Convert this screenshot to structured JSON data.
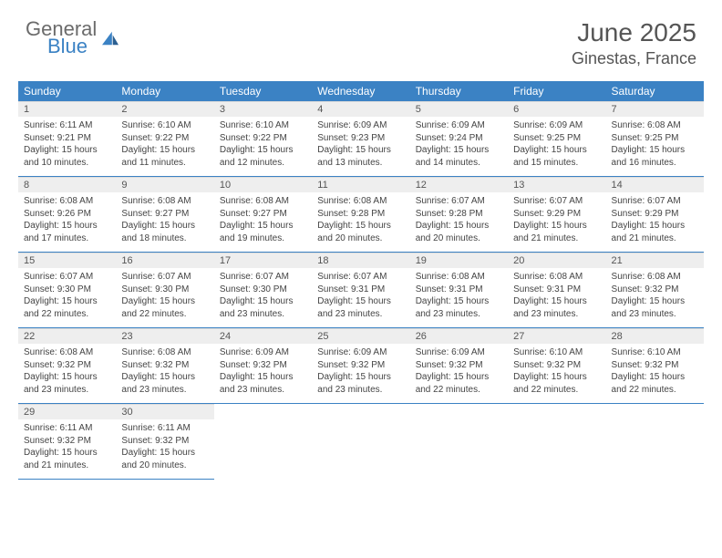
{
  "logo": {
    "text_top": "General",
    "text_bottom": "Blue"
  },
  "title": "June 2025",
  "location": "Ginestas, France",
  "colors": {
    "header_bg": "#3b82c4",
    "header_text": "#ffffff",
    "daynum_bg": "#eeeeee",
    "body_text": "#444444",
    "logo_gray": "#6b6b6b",
    "logo_blue": "#3b82c4"
  },
  "weekdays": [
    "Sunday",
    "Monday",
    "Tuesday",
    "Wednesday",
    "Thursday",
    "Friday",
    "Saturday"
  ],
  "weeks": [
    [
      {
        "n": "1",
        "sr": "Sunrise: 6:11 AM",
        "ss": "Sunset: 9:21 PM",
        "d1": "Daylight: 15 hours",
        "d2": "and 10 minutes."
      },
      {
        "n": "2",
        "sr": "Sunrise: 6:10 AM",
        "ss": "Sunset: 9:22 PM",
        "d1": "Daylight: 15 hours",
        "d2": "and 11 minutes."
      },
      {
        "n": "3",
        "sr": "Sunrise: 6:10 AM",
        "ss": "Sunset: 9:22 PM",
        "d1": "Daylight: 15 hours",
        "d2": "and 12 minutes."
      },
      {
        "n": "4",
        "sr": "Sunrise: 6:09 AM",
        "ss": "Sunset: 9:23 PM",
        "d1": "Daylight: 15 hours",
        "d2": "and 13 minutes."
      },
      {
        "n": "5",
        "sr": "Sunrise: 6:09 AM",
        "ss": "Sunset: 9:24 PM",
        "d1": "Daylight: 15 hours",
        "d2": "and 14 minutes."
      },
      {
        "n": "6",
        "sr": "Sunrise: 6:09 AM",
        "ss": "Sunset: 9:25 PM",
        "d1": "Daylight: 15 hours",
        "d2": "and 15 minutes."
      },
      {
        "n": "7",
        "sr": "Sunrise: 6:08 AM",
        "ss": "Sunset: 9:25 PM",
        "d1": "Daylight: 15 hours",
        "d2": "and 16 minutes."
      }
    ],
    [
      {
        "n": "8",
        "sr": "Sunrise: 6:08 AM",
        "ss": "Sunset: 9:26 PM",
        "d1": "Daylight: 15 hours",
        "d2": "and 17 minutes."
      },
      {
        "n": "9",
        "sr": "Sunrise: 6:08 AM",
        "ss": "Sunset: 9:27 PM",
        "d1": "Daylight: 15 hours",
        "d2": "and 18 minutes."
      },
      {
        "n": "10",
        "sr": "Sunrise: 6:08 AM",
        "ss": "Sunset: 9:27 PM",
        "d1": "Daylight: 15 hours",
        "d2": "and 19 minutes."
      },
      {
        "n": "11",
        "sr": "Sunrise: 6:08 AM",
        "ss": "Sunset: 9:28 PM",
        "d1": "Daylight: 15 hours",
        "d2": "and 20 minutes."
      },
      {
        "n": "12",
        "sr": "Sunrise: 6:07 AM",
        "ss": "Sunset: 9:28 PM",
        "d1": "Daylight: 15 hours",
        "d2": "and 20 minutes."
      },
      {
        "n": "13",
        "sr": "Sunrise: 6:07 AM",
        "ss": "Sunset: 9:29 PM",
        "d1": "Daylight: 15 hours",
        "d2": "and 21 minutes."
      },
      {
        "n": "14",
        "sr": "Sunrise: 6:07 AM",
        "ss": "Sunset: 9:29 PM",
        "d1": "Daylight: 15 hours",
        "d2": "and 21 minutes."
      }
    ],
    [
      {
        "n": "15",
        "sr": "Sunrise: 6:07 AM",
        "ss": "Sunset: 9:30 PM",
        "d1": "Daylight: 15 hours",
        "d2": "and 22 minutes."
      },
      {
        "n": "16",
        "sr": "Sunrise: 6:07 AM",
        "ss": "Sunset: 9:30 PM",
        "d1": "Daylight: 15 hours",
        "d2": "and 22 minutes."
      },
      {
        "n": "17",
        "sr": "Sunrise: 6:07 AM",
        "ss": "Sunset: 9:30 PM",
        "d1": "Daylight: 15 hours",
        "d2": "and 23 minutes."
      },
      {
        "n": "18",
        "sr": "Sunrise: 6:07 AM",
        "ss": "Sunset: 9:31 PM",
        "d1": "Daylight: 15 hours",
        "d2": "and 23 minutes."
      },
      {
        "n": "19",
        "sr": "Sunrise: 6:08 AM",
        "ss": "Sunset: 9:31 PM",
        "d1": "Daylight: 15 hours",
        "d2": "and 23 minutes."
      },
      {
        "n": "20",
        "sr": "Sunrise: 6:08 AM",
        "ss": "Sunset: 9:31 PM",
        "d1": "Daylight: 15 hours",
        "d2": "and 23 minutes."
      },
      {
        "n": "21",
        "sr": "Sunrise: 6:08 AM",
        "ss": "Sunset: 9:32 PM",
        "d1": "Daylight: 15 hours",
        "d2": "and 23 minutes."
      }
    ],
    [
      {
        "n": "22",
        "sr": "Sunrise: 6:08 AM",
        "ss": "Sunset: 9:32 PM",
        "d1": "Daylight: 15 hours",
        "d2": "and 23 minutes."
      },
      {
        "n": "23",
        "sr": "Sunrise: 6:08 AM",
        "ss": "Sunset: 9:32 PM",
        "d1": "Daylight: 15 hours",
        "d2": "and 23 minutes."
      },
      {
        "n": "24",
        "sr": "Sunrise: 6:09 AM",
        "ss": "Sunset: 9:32 PM",
        "d1": "Daylight: 15 hours",
        "d2": "and 23 minutes."
      },
      {
        "n": "25",
        "sr": "Sunrise: 6:09 AM",
        "ss": "Sunset: 9:32 PM",
        "d1": "Daylight: 15 hours",
        "d2": "and 23 minutes."
      },
      {
        "n": "26",
        "sr": "Sunrise: 6:09 AM",
        "ss": "Sunset: 9:32 PM",
        "d1": "Daylight: 15 hours",
        "d2": "and 22 minutes."
      },
      {
        "n": "27",
        "sr": "Sunrise: 6:10 AM",
        "ss": "Sunset: 9:32 PM",
        "d1": "Daylight: 15 hours",
        "d2": "and 22 minutes."
      },
      {
        "n": "28",
        "sr": "Sunrise: 6:10 AM",
        "ss": "Sunset: 9:32 PM",
        "d1": "Daylight: 15 hours",
        "d2": "and 22 minutes."
      }
    ],
    [
      {
        "n": "29",
        "sr": "Sunrise: 6:11 AM",
        "ss": "Sunset: 9:32 PM",
        "d1": "Daylight: 15 hours",
        "d2": "and 21 minutes."
      },
      {
        "n": "30",
        "sr": "Sunrise: 6:11 AM",
        "ss": "Sunset: 9:32 PM",
        "d1": "Daylight: 15 hours",
        "d2": "and 20 minutes."
      },
      null,
      null,
      null,
      null,
      null
    ]
  ]
}
